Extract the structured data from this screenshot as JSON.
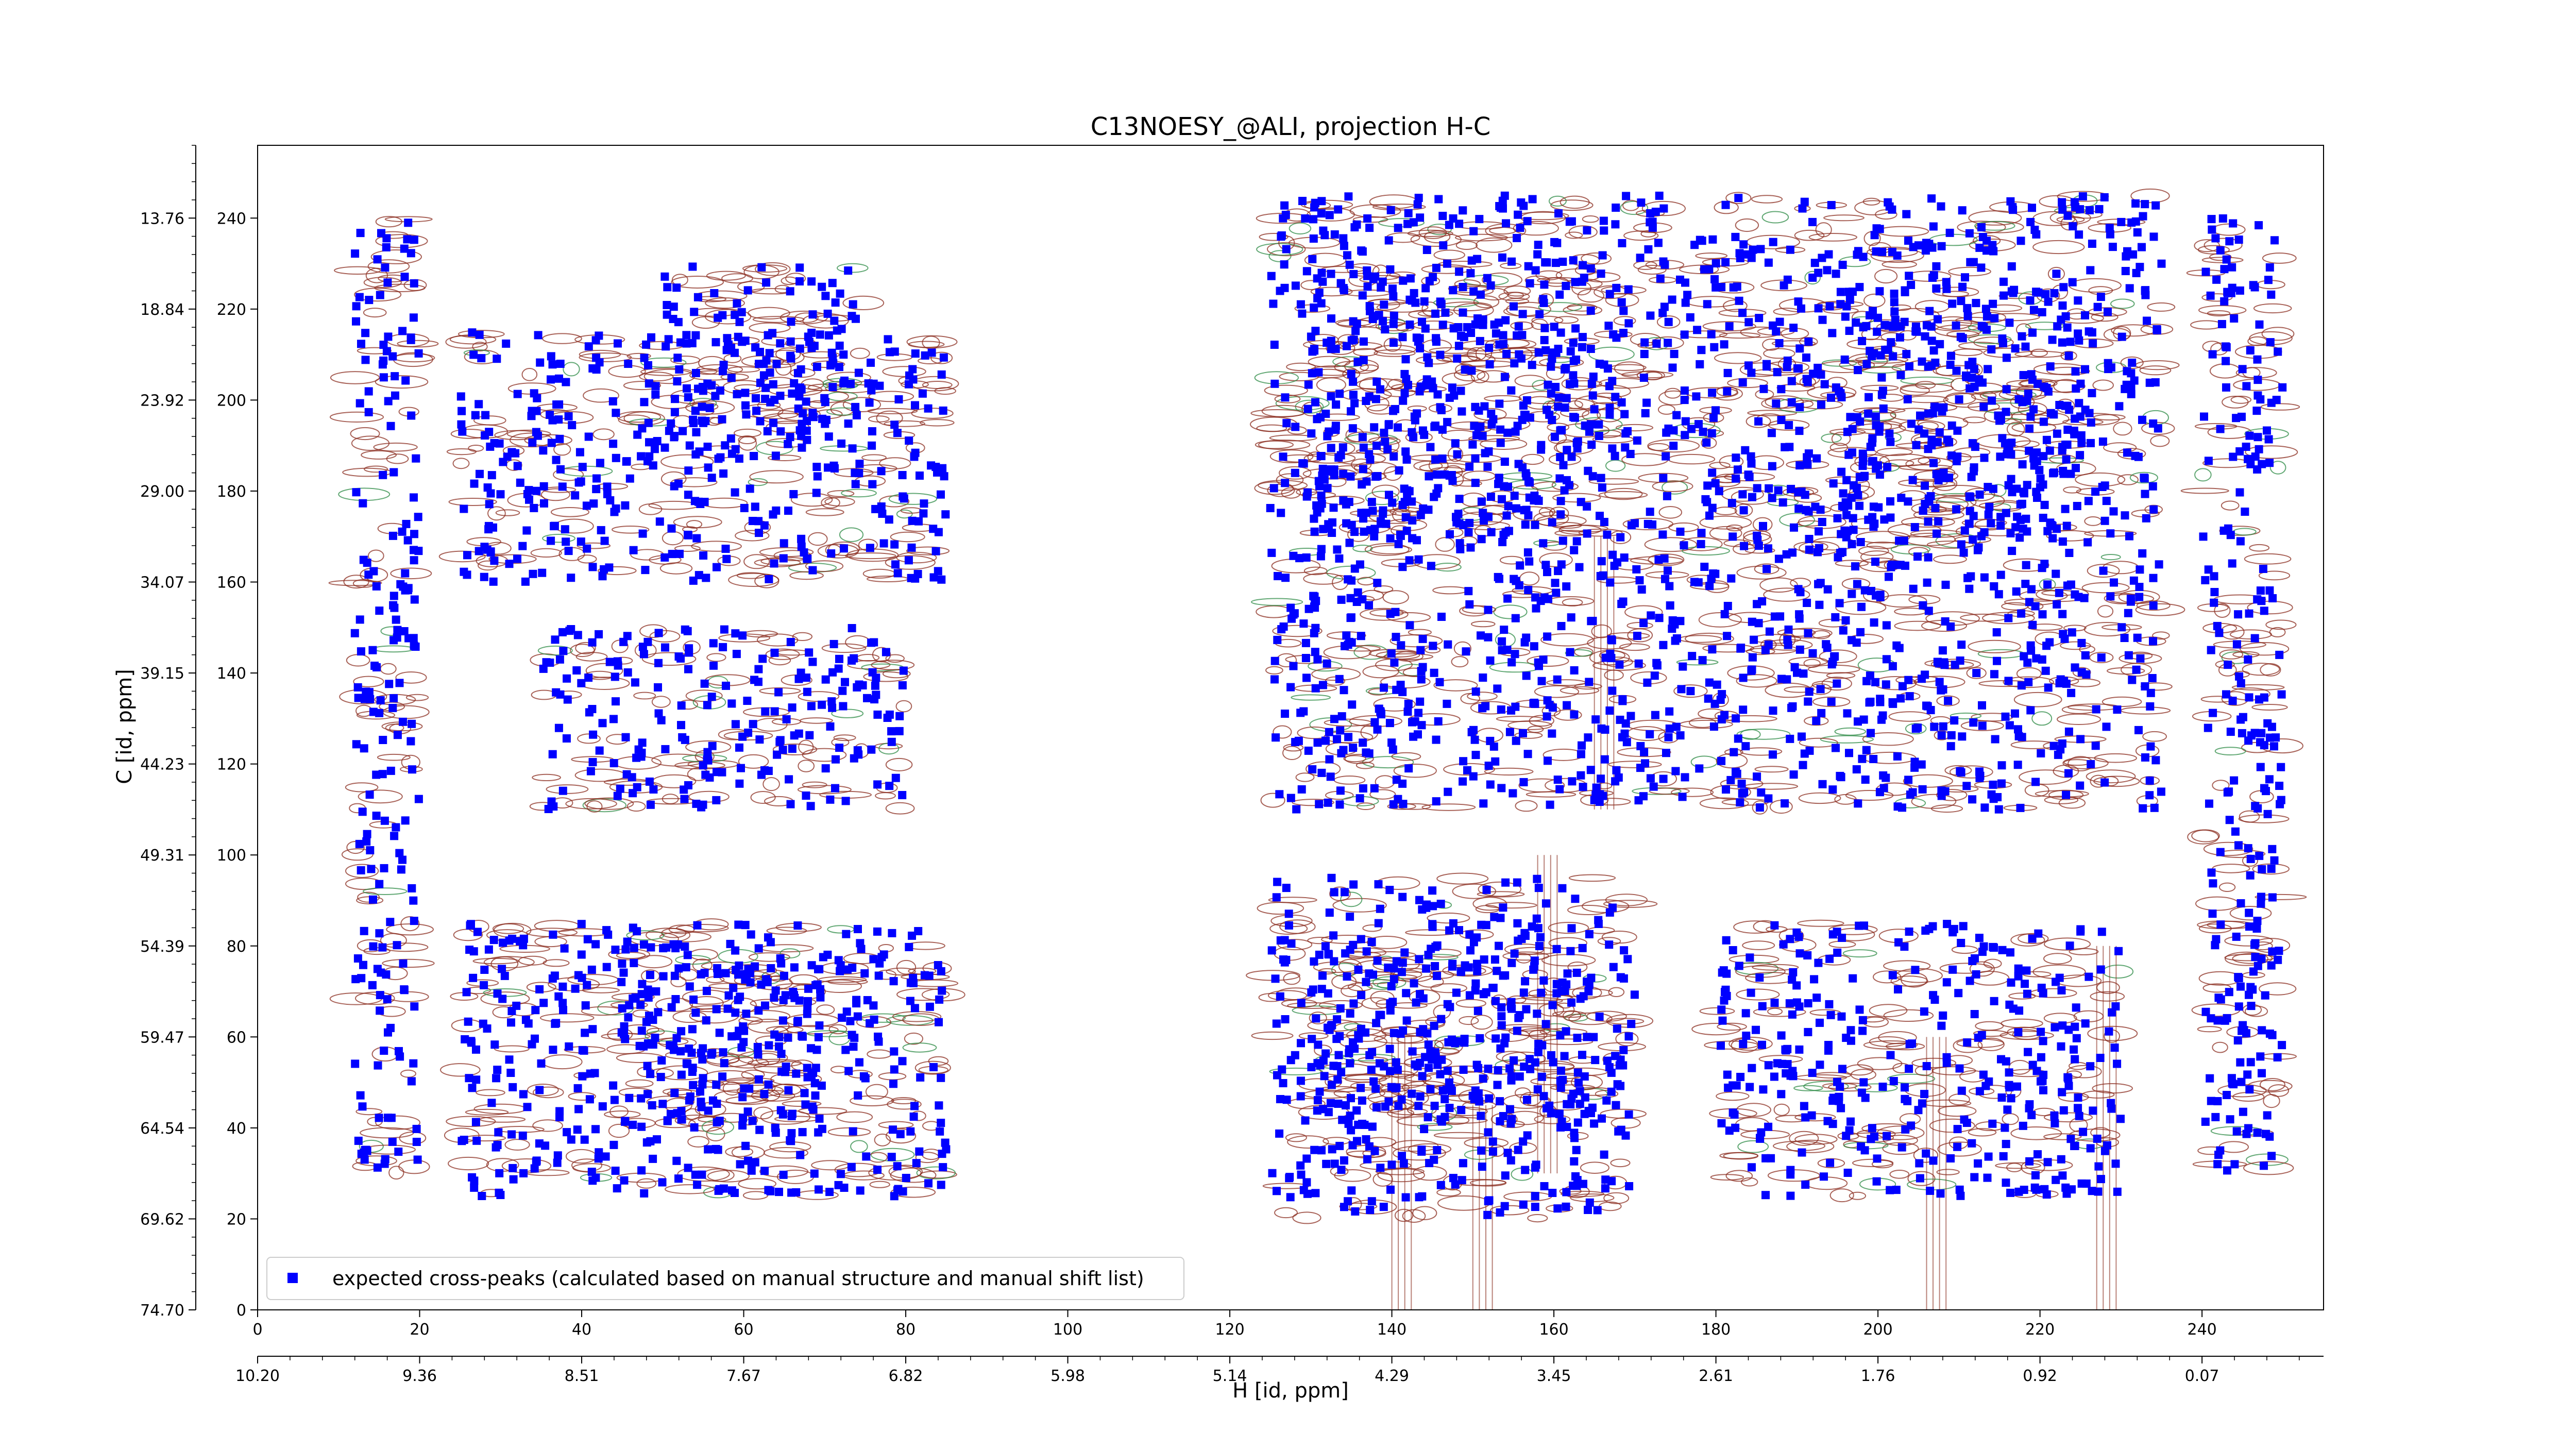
{
  "chart_data": {
    "type": "scatter",
    "title": "C13NOESY_@ALI, projection H-C",
    "xlabel": "H [id, ppm]",
    "ylabel": "C [id, ppm]",
    "xlim": [
      0,
      255
    ],
    "ylim": [
      0,
      256
    ],
    "x_index_ticks": [
      "0",
      "20",
      "40",
      "60",
      "80",
      "100",
      "120",
      "140",
      "160",
      "180",
      "200",
      "220",
      "240"
    ],
    "y_index_ticks": [
      "0",
      "20",
      "40",
      "60",
      "80",
      "100",
      "120",
      "140",
      "160",
      "180",
      "200",
      "220",
      "240"
    ],
    "x_ppm_ticks": [
      "10.20",
      "9.36",
      "8.51",
      "7.67",
      "6.82",
      "5.98",
      "5.14",
      "4.29",
      "3.45",
      "2.61",
      "1.76",
      "0.92",
      "0.07"
    ],
    "y_ppm_ticks": [
      "74.70",
      "69.62",
      "64.54",
      "59.47",
      "54.39",
      "49.31",
      "44.23",
      "39.15",
      "34.07",
      "29.00",
      "23.92",
      "18.84",
      "13.76"
    ],
    "grid": false,
    "legend_position": "bottom-left",
    "series": [
      {
        "name": "expected cross-peaks (calculated based on manual structure and manual shift list)",
        "color": "#0000ff",
        "marker": "square",
        "clusters": [
          {
            "x": [
              50,
              75
            ],
            "y": [
              190,
              230
            ]
          },
          {
            "x": [
              25,
              85
            ],
            "y": [
              160,
              215
            ]
          },
          {
            "x": [
              35,
              80
            ],
            "y": [
              110,
              150
            ]
          },
          {
            "x": [
              45,
              70
            ],
            "y": [
              40,
              80
            ]
          },
          {
            "x": [
              25,
              85
            ],
            "y": [
              25,
              85
            ]
          },
          {
            "x": [
              130,
              165
            ],
            "y": [
              40,
              80
            ]
          },
          {
            "x": [
              125,
              170
            ],
            "y": [
              20,
              95
            ]
          },
          {
            "x": [
              130,
              165
            ],
            "y": [
              170,
              230
            ]
          },
          {
            "x": [
              125,
              170
            ],
            "y": [
              110,
              245
            ]
          },
          {
            "x": [
              170,
              235
            ],
            "y": [
              110,
              245
            ]
          },
          {
            "x": [
              195,
              225
            ],
            "y": [
              170,
              225
            ]
          },
          {
            "x": [
              180,
              230
            ],
            "y": [
              25,
              85
            ]
          },
          {
            "x": [
              12,
              20
            ],
            "y": [
              30,
              240
            ]
          },
          {
            "x": [
              240,
              250
            ],
            "y": [
              30,
              240
            ]
          }
        ]
      }
    ],
    "contour_colors": {
      "positive": "#8b2e20",
      "negative": "#2e8b45"
    }
  }
}
